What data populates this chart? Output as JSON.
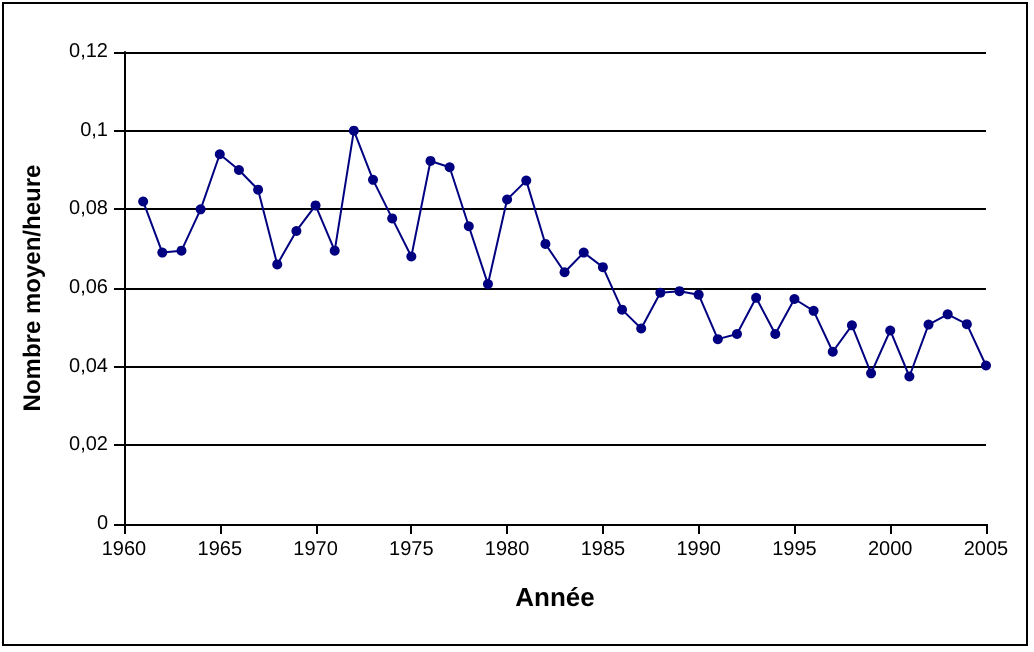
{
  "chart_data": {
    "type": "line",
    "xlabel": "Année",
    "ylabel": "Nombre moyen/heure",
    "x": [
      1961,
      1962,
      1963,
      1964,
      1965,
      1966,
      1967,
      1968,
      1969,
      1970,
      1971,
      1972,
      1973,
      1974,
      1975,
      1976,
      1977,
      1978,
      1979,
      1980,
      1981,
      1982,
      1983,
      1984,
      1985,
      1986,
      1987,
      1988,
      1989,
      1990,
      1991,
      1992,
      1993,
      1994,
      1995,
      1996,
      1997,
      1998,
      1999,
      2000,
      2001,
      2002,
      2003,
      2004,
      2005
    ],
    "series": [
      {
        "color": "#000080",
        "values": [
          0.082,
          0.069,
          0.0695,
          0.08,
          0.094,
          0.09,
          0.085,
          0.066,
          0.0745,
          0.081,
          0.0695,
          0.1,
          0.0875,
          0.0777,
          0.068,
          0.0923,
          0.0907,
          0.0757,
          0.061,
          0.0825,
          0.0873,
          0.0712,
          0.064,
          0.069,
          0.0653,
          0.0545,
          0.0497,
          0.0588,
          0.0592,
          0.0583,
          0.047,
          0.0483,
          0.0575,
          0.0483,
          0.0572,
          0.0542,
          0.0438,
          0.0505,
          0.0383,
          0.0492,
          0.0375,
          0.0507,
          0.0533,
          0.0508,
          0.0403
        ]
      }
    ],
    "xlim": [
      1960,
      2005
    ],
    "xticks": [
      1960,
      1965,
      1970,
      1975,
      1980,
      1985,
      1990,
      1995,
      2000,
      2005
    ],
    "ylim": [
      0,
      0.12
    ],
    "yticks": [
      0,
      {
        "value": 0.02,
        "label": "0,02"
      },
      {
        "value": 0.04,
        "label": "0,04"
      },
      {
        "value": 0.06,
        "label": "0,06"
      },
      {
        "value": 0.08,
        "label": "0,08"
      },
      {
        "value": 0.1,
        "label": "0,1"
      },
      {
        "value": 0.12,
        "label": "0,12"
      }
    ],
    "grid": "y",
    "marker": "circle",
    "line_style": "solid"
  }
}
